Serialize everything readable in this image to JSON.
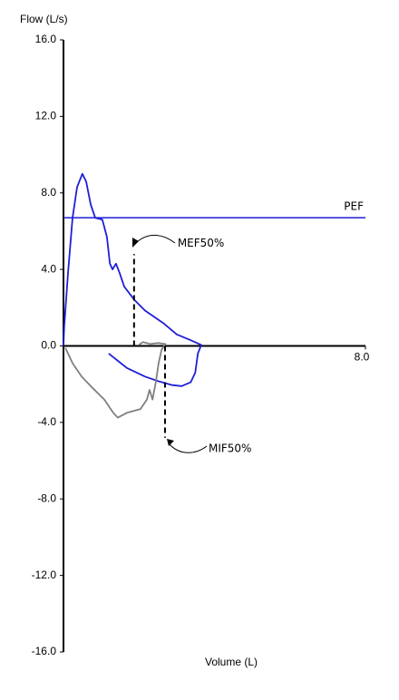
{
  "chart_data": {
    "type": "line",
    "y_label": "Flow (L/s)",
    "x_label": "Volume (L)",
    "xlim": [
      0,
      8
    ],
    "xticks": [
      {
        "value": 8,
        "label": "8.0"
      }
    ],
    "ylim": [
      -16,
      16
    ],
    "yticks": [
      {
        "value": 16,
        "label": "16.0"
      },
      {
        "value": 12,
        "label": "12.0"
      },
      {
        "value": 8,
        "label": "8.0"
      },
      {
        "value": 4,
        "label": "4.0"
      },
      {
        "value": 0,
        "label": "0.0"
      },
      {
        "value": -4,
        "label": "-4.0"
      },
      {
        "value": -8,
        "label": "-8.0"
      },
      {
        "value": -12,
        "label": "-12.0"
      },
      {
        "value": -16,
        "label": "-16.0"
      }
    ],
    "series": [
      {
        "color": "#1f1fd6",
        "x": [
          0,
          0.02,
          0.12,
          0.24,
          0.36,
          0.5,
          0.6,
          0.72,
          0.84,
          1.03,
          1.15,
          1.23,
          1.3,
          1.39,
          1.49,
          1.61,
          1.88,
          2.16,
          2.64,
          3.0,
          3.37,
          3.65,
          3.56,
          3.49,
          3.37,
          3.13,
          2.88,
          2.52,
          2.16,
          1.68,
          1.2
        ],
        "values": [
          0,
          1.0,
          3.8,
          6.7,
          8.3,
          9.0,
          8.6,
          7.4,
          6.7,
          6.6,
          5.7,
          4.3,
          4.0,
          4.3,
          3.8,
          3.1,
          2.4,
          1.85,
          1.2,
          0.6,
          0.3,
          0.05,
          -0.4,
          -1.4,
          -1.9,
          -2.1,
          -2.05,
          -1.85,
          -1.6,
          -1.15,
          -0.4
        ]
      },
      {
        "color": "#808080",
        "x": [
          0.05,
          0.24,
          0.48,
          0.72,
          1.08,
          1.32,
          1.44,
          1.68,
          2.04,
          2.21,
          2.28,
          2.36,
          2.45,
          2.52,
          2.6,
          2.7,
          2.5,
          2.3,
          2.1,
          2.0
        ],
        "values": [
          -0.1,
          -0.9,
          -1.6,
          -2.1,
          -2.8,
          -3.5,
          -3.75,
          -3.5,
          -3.3,
          -2.8,
          -2.3,
          -2.8,
          -1.85,
          -0.9,
          -0.2,
          0.1,
          0.15,
          0.1,
          0.2,
          0.05
        ]
      }
    ],
    "reference_line": {
      "label": "PEF",
      "y": 6.7,
      "color": "#1f1fd6"
    },
    "markers": [
      {
        "label": "MEF50%",
        "x": 1.87,
        "y": 4.8
      },
      {
        "label": "MIF50%",
        "x": 2.69,
        "y": -4.8
      }
    ]
  }
}
